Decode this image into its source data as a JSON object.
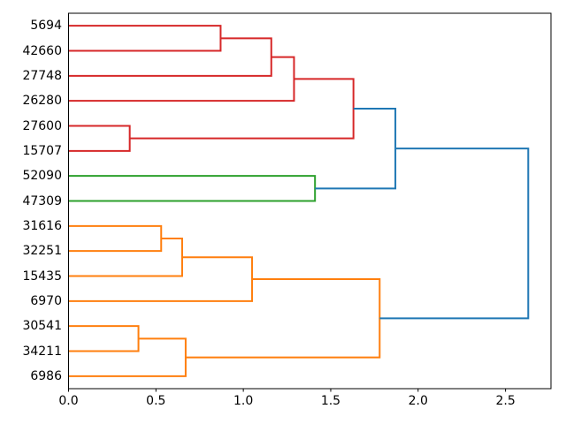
{
  "chart_data": {
    "type": "dendrogram",
    "orientation": "left-to-right",
    "title": "",
    "xlabel": "",
    "ylabel": "",
    "grid": false,
    "xlim": [
      0,
      2.76
    ],
    "x_axis": {
      "ticks": [
        {
          "value": 0.0,
          "label": "0.0"
        },
        {
          "value": 0.5,
          "label": "0.5"
        },
        {
          "value": 1.0,
          "label": "1.0"
        },
        {
          "value": 1.5,
          "label": "1.5"
        },
        {
          "value": 2.0,
          "label": "2.0"
        },
        {
          "value": 2.5,
          "label": "2.5"
        }
      ]
    },
    "colors": {
      "blue": "#1f77b4",
      "orange": "#ff7f0e",
      "green": "#2ca02c",
      "red": "#d62728",
      "frame": "#000000",
      "text": "#000000"
    },
    "leaves": [
      {
        "label": "5694",
        "cluster": "red"
      },
      {
        "label": "42660",
        "cluster": "red"
      },
      {
        "label": "27748",
        "cluster": "red"
      },
      {
        "label": "26280",
        "cluster": "red"
      },
      {
        "label": "27600",
        "cluster": "red"
      },
      {
        "label": "15707",
        "cluster": "red"
      },
      {
        "label": "52090",
        "cluster": "green"
      },
      {
        "label": "47309",
        "cluster": "green"
      },
      {
        "label": "31616",
        "cluster": "orange"
      },
      {
        "label": "32251",
        "cluster": "orange"
      },
      {
        "label": "15435",
        "cluster": "orange"
      },
      {
        "label": "6970",
        "cluster": "orange"
      },
      {
        "label": "30541",
        "cluster": "orange"
      },
      {
        "label": "34211",
        "cluster": "orange"
      },
      {
        "label": "6986",
        "cluster": "orange"
      }
    ],
    "links": [
      {
        "id": "merge-5694-42660",
        "children": [
          "leaf-0",
          "leaf-1"
        ],
        "height": 0.87,
        "color": "red"
      },
      {
        "id": "merge-plus-27748",
        "children": [
          "merge-5694-42660",
          "leaf-2"
        ],
        "height": 1.16,
        "color": "red"
      },
      {
        "id": "merge-plus-26280",
        "children": [
          "merge-plus-27748",
          "leaf-3"
        ],
        "height": 1.29,
        "color": "red"
      },
      {
        "id": "merge-27600-15707",
        "children": [
          "leaf-4",
          "leaf-5"
        ],
        "height": 0.35,
        "color": "red"
      },
      {
        "id": "red-cluster-root",
        "children": [
          "merge-plus-26280",
          "merge-27600-15707"
        ],
        "height": 1.63,
        "color": "red"
      },
      {
        "id": "merge-52090-47309",
        "children": [
          "leaf-6",
          "leaf-7"
        ],
        "height": 1.41,
        "color": "green"
      },
      {
        "id": "merge-red-green",
        "children": [
          "red-cluster-root",
          "merge-52090-47309"
        ],
        "height": 1.87,
        "color": "blue"
      },
      {
        "id": "merge-31616-32251",
        "children": [
          "leaf-8",
          "leaf-9"
        ],
        "height": 0.53,
        "color": "orange"
      },
      {
        "id": "merge-plus-15435",
        "children": [
          "merge-31616-32251",
          "leaf-10"
        ],
        "height": 0.65,
        "color": "orange"
      },
      {
        "id": "merge-plus-6970",
        "children": [
          "merge-plus-15435",
          "leaf-11"
        ],
        "height": 1.05,
        "color": "orange"
      },
      {
        "id": "merge-30541-34211",
        "children": [
          "leaf-12",
          "leaf-13"
        ],
        "height": 0.4,
        "color": "orange"
      },
      {
        "id": "merge-plus-6986",
        "children": [
          "merge-30541-34211",
          "leaf-14"
        ],
        "height": 0.67,
        "color": "orange"
      },
      {
        "id": "orange-cluster-root",
        "children": [
          "merge-plus-6970",
          "merge-plus-6986"
        ],
        "height": 1.78,
        "color": "orange"
      },
      {
        "id": "dendrogram-root",
        "children": [
          "merge-red-green",
          "orange-cluster-root"
        ],
        "height": 2.63,
        "color": "blue"
      }
    ]
  }
}
